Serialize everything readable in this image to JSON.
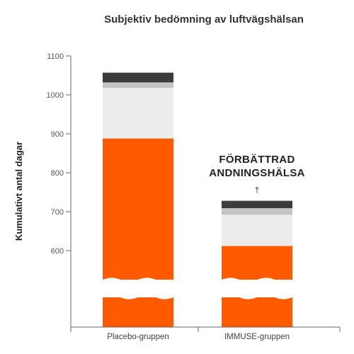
{
  "chart_data": {
    "type": "bar",
    "stacked": true,
    "title": "Subjektiv bedömning av luftvägshälsan",
    "xlabel": "",
    "ylabel": "Kumulativt antal dagar",
    "ylim": [
      520,
      1100
    ],
    "axis_break": true,
    "yticks": [
      {
        "value": 1100,
        "label": "1100"
      },
      {
        "value": 1000,
        "label": "1000"
      },
      {
        "value": 900,
        "label": "900"
      },
      {
        "value": 800,
        "label": "800"
      },
      {
        "value": 700,
        "label": "700"
      },
      {
        "value": 600,
        "label": "600"
      }
    ],
    "categories": [
      "Placebo-gruppen",
      "IMMUSE-gruppen"
    ],
    "segments": [
      {
        "color": "#ff5a00",
        "tops": [
          888,
          612
        ]
      },
      {
        "color": "#ececec",
        "tops": [
          1018,
          692
        ]
      },
      {
        "color": "#c4c4c4",
        "tops": [
          1032,
          709
        ]
      },
      {
        "color": "#3c3c3c",
        "tops": [
          1057,
          728
        ]
      }
    ],
    "annotation": {
      "lines": [
        "FÖRBÄTTRAD",
        "ANDNINGSHÄLSA"
      ],
      "marker": "†"
    },
    "grid": false
  }
}
